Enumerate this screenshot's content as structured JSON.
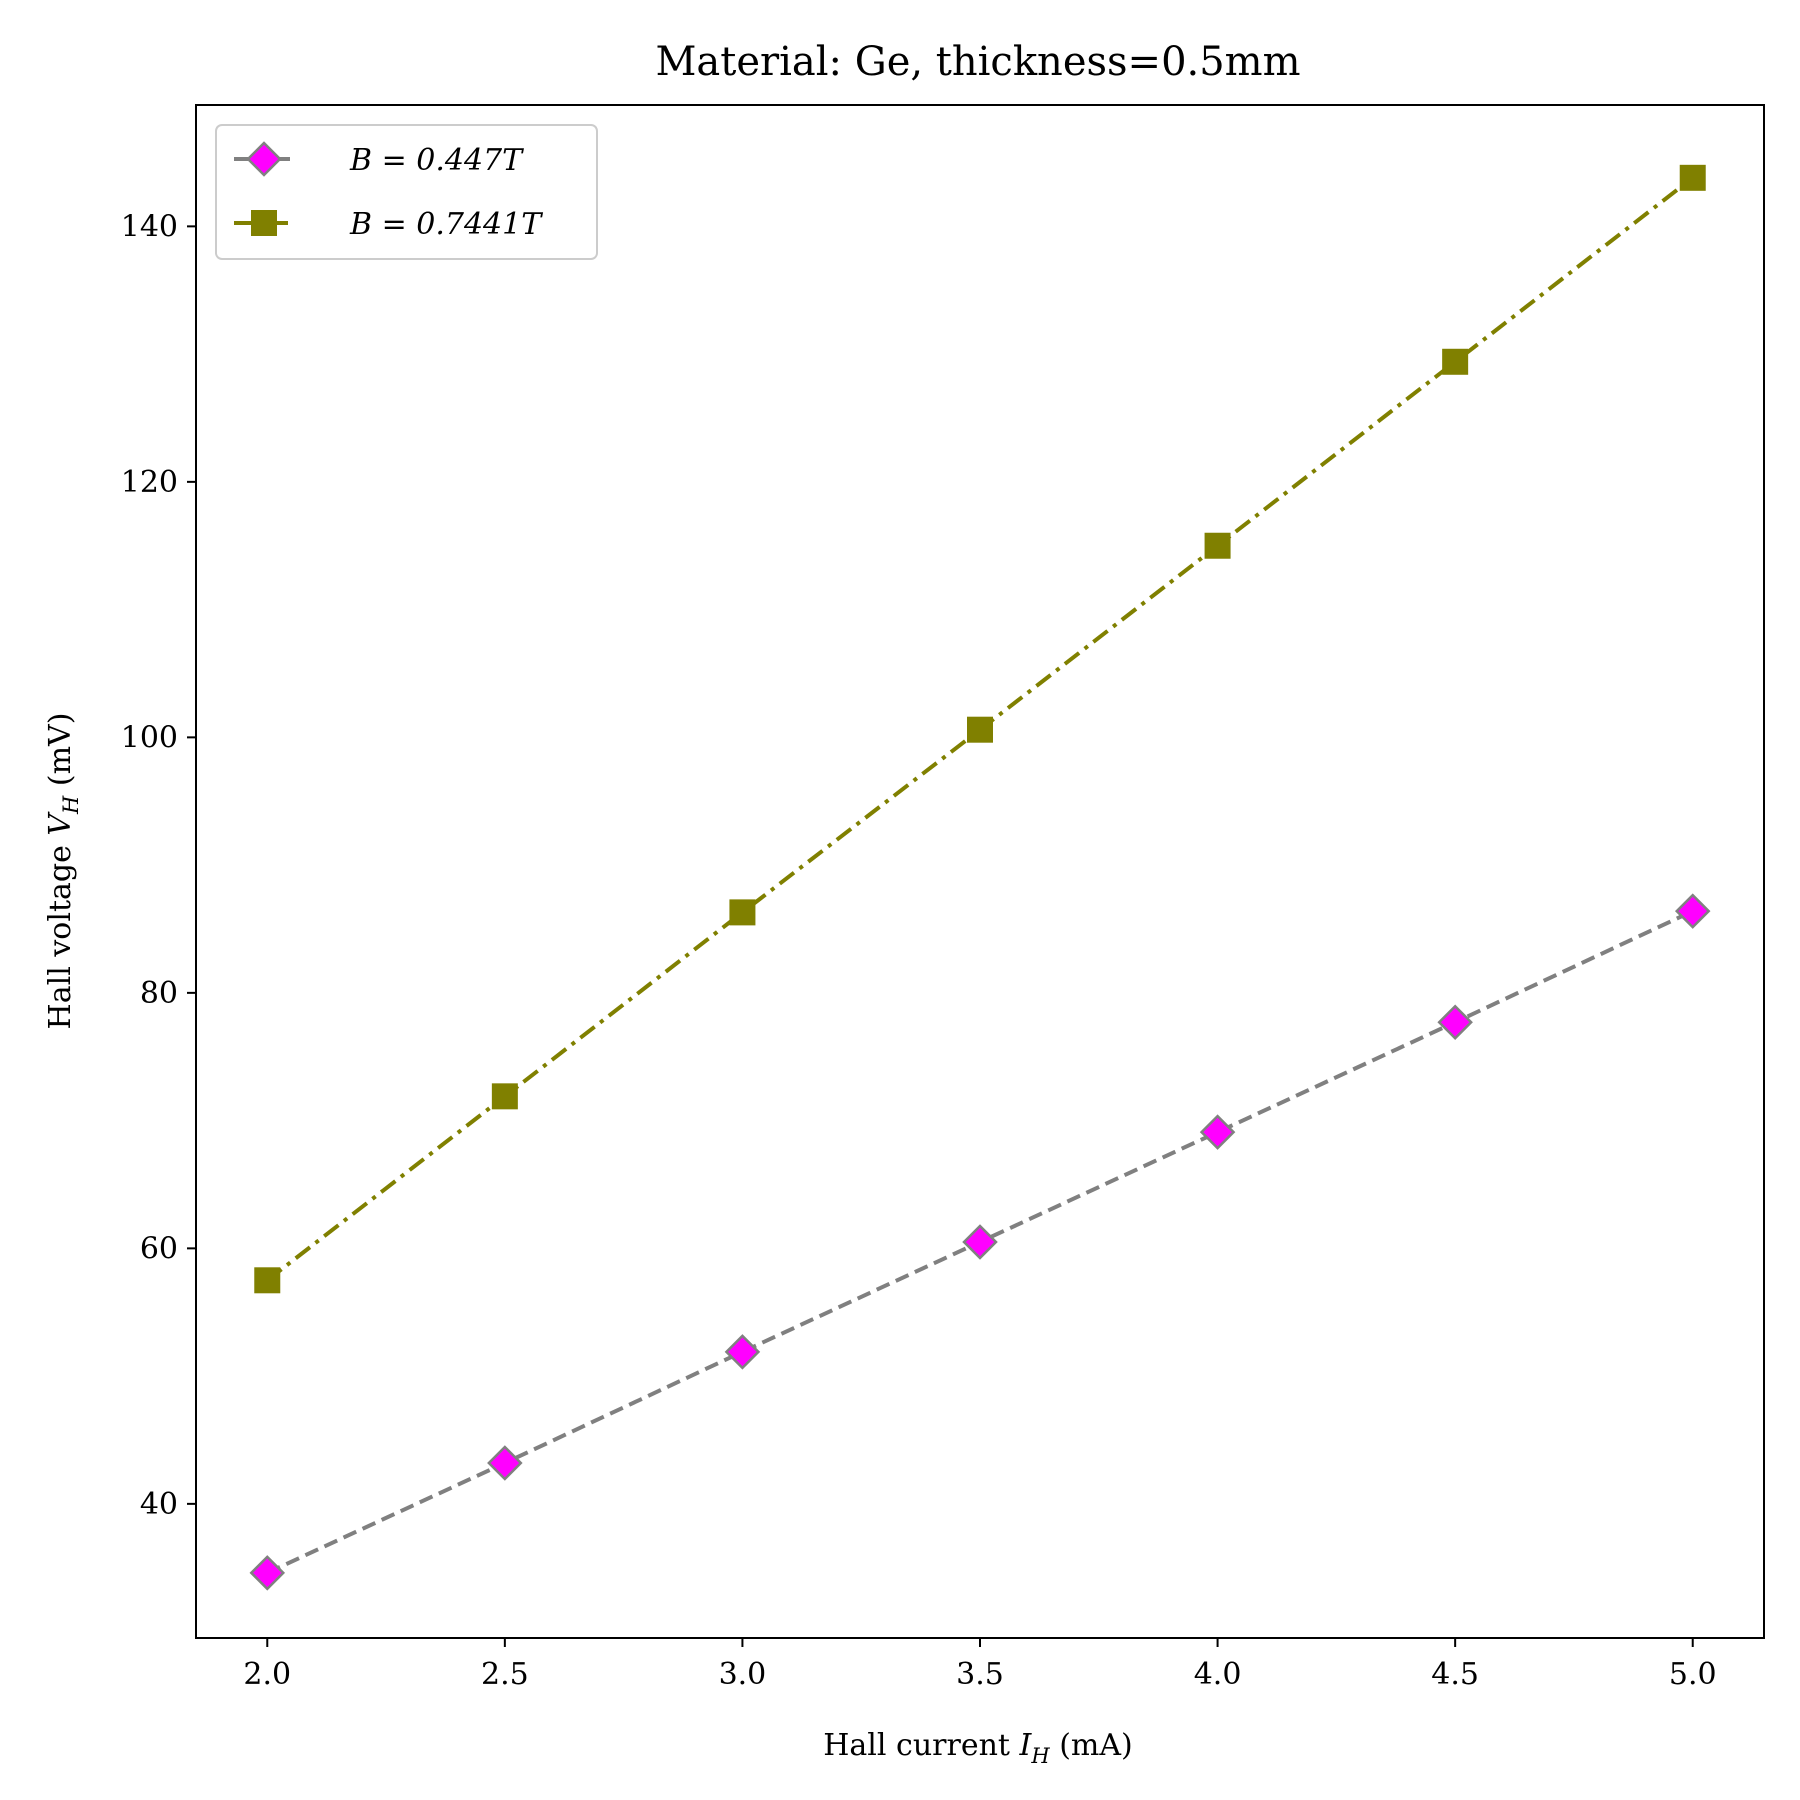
{
  "chart_data": {
    "type": "line",
    "title": "Material: Ge, thickness=0.5mm",
    "xlabel": "Hall current I_H (mA)",
    "ylabel": "Hall voltage V_H (mV)",
    "xlabel_parts": {
      "pre": "Hall current ",
      "var": "I",
      "sub": "H",
      "post": " (mA)"
    },
    "ylabel_parts": {
      "pre": "Hall voltage ",
      "var": "V",
      "sub": "H",
      "post": " (mV)"
    },
    "xlim": [
      1.85,
      5.15
    ],
    "ylim": [
      29.5,
      149.5
    ],
    "xticks": [
      2.0,
      2.5,
      3.0,
      3.5,
      4.0,
      4.5,
      5.0
    ],
    "xtick_labels": [
      "2.0",
      "2.5",
      "3.0",
      "3.5",
      "4.0",
      "4.5",
      "5.0"
    ],
    "yticks": [
      40,
      60,
      80,
      100,
      120,
      140
    ],
    "ytick_labels": [
      "40",
      "60",
      "80",
      "100",
      "120",
      "140"
    ],
    "grid": false,
    "legend_position": "top-left",
    "series": [
      {
        "name": "B = 0.447T",
        "x": [
          2.0,
          2.5,
          3.0,
          3.5,
          4.0,
          4.5,
          5.0
        ],
        "y": [
          34.6,
          43.2,
          51.9,
          60.5,
          69.1,
          77.7,
          86.4
        ],
        "line_color": "#808080",
        "line_style": "dashed",
        "marker": "diamond",
        "marker_face": "#ff00ff",
        "marker_edge": "#808080"
      },
      {
        "name": "B = 0.7441T",
        "x": [
          2.0,
          2.5,
          3.0,
          3.5,
          4.0,
          4.5,
          5.0
        ],
        "y": [
          57.5,
          71.9,
          86.3,
          100.6,
          115.0,
          129.4,
          143.8
        ],
        "line_color": "#808000",
        "line_style": "dashdot",
        "marker": "square",
        "marker_face": "#808000",
        "marker_edge": "#808000"
      }
    ]
  }
}
